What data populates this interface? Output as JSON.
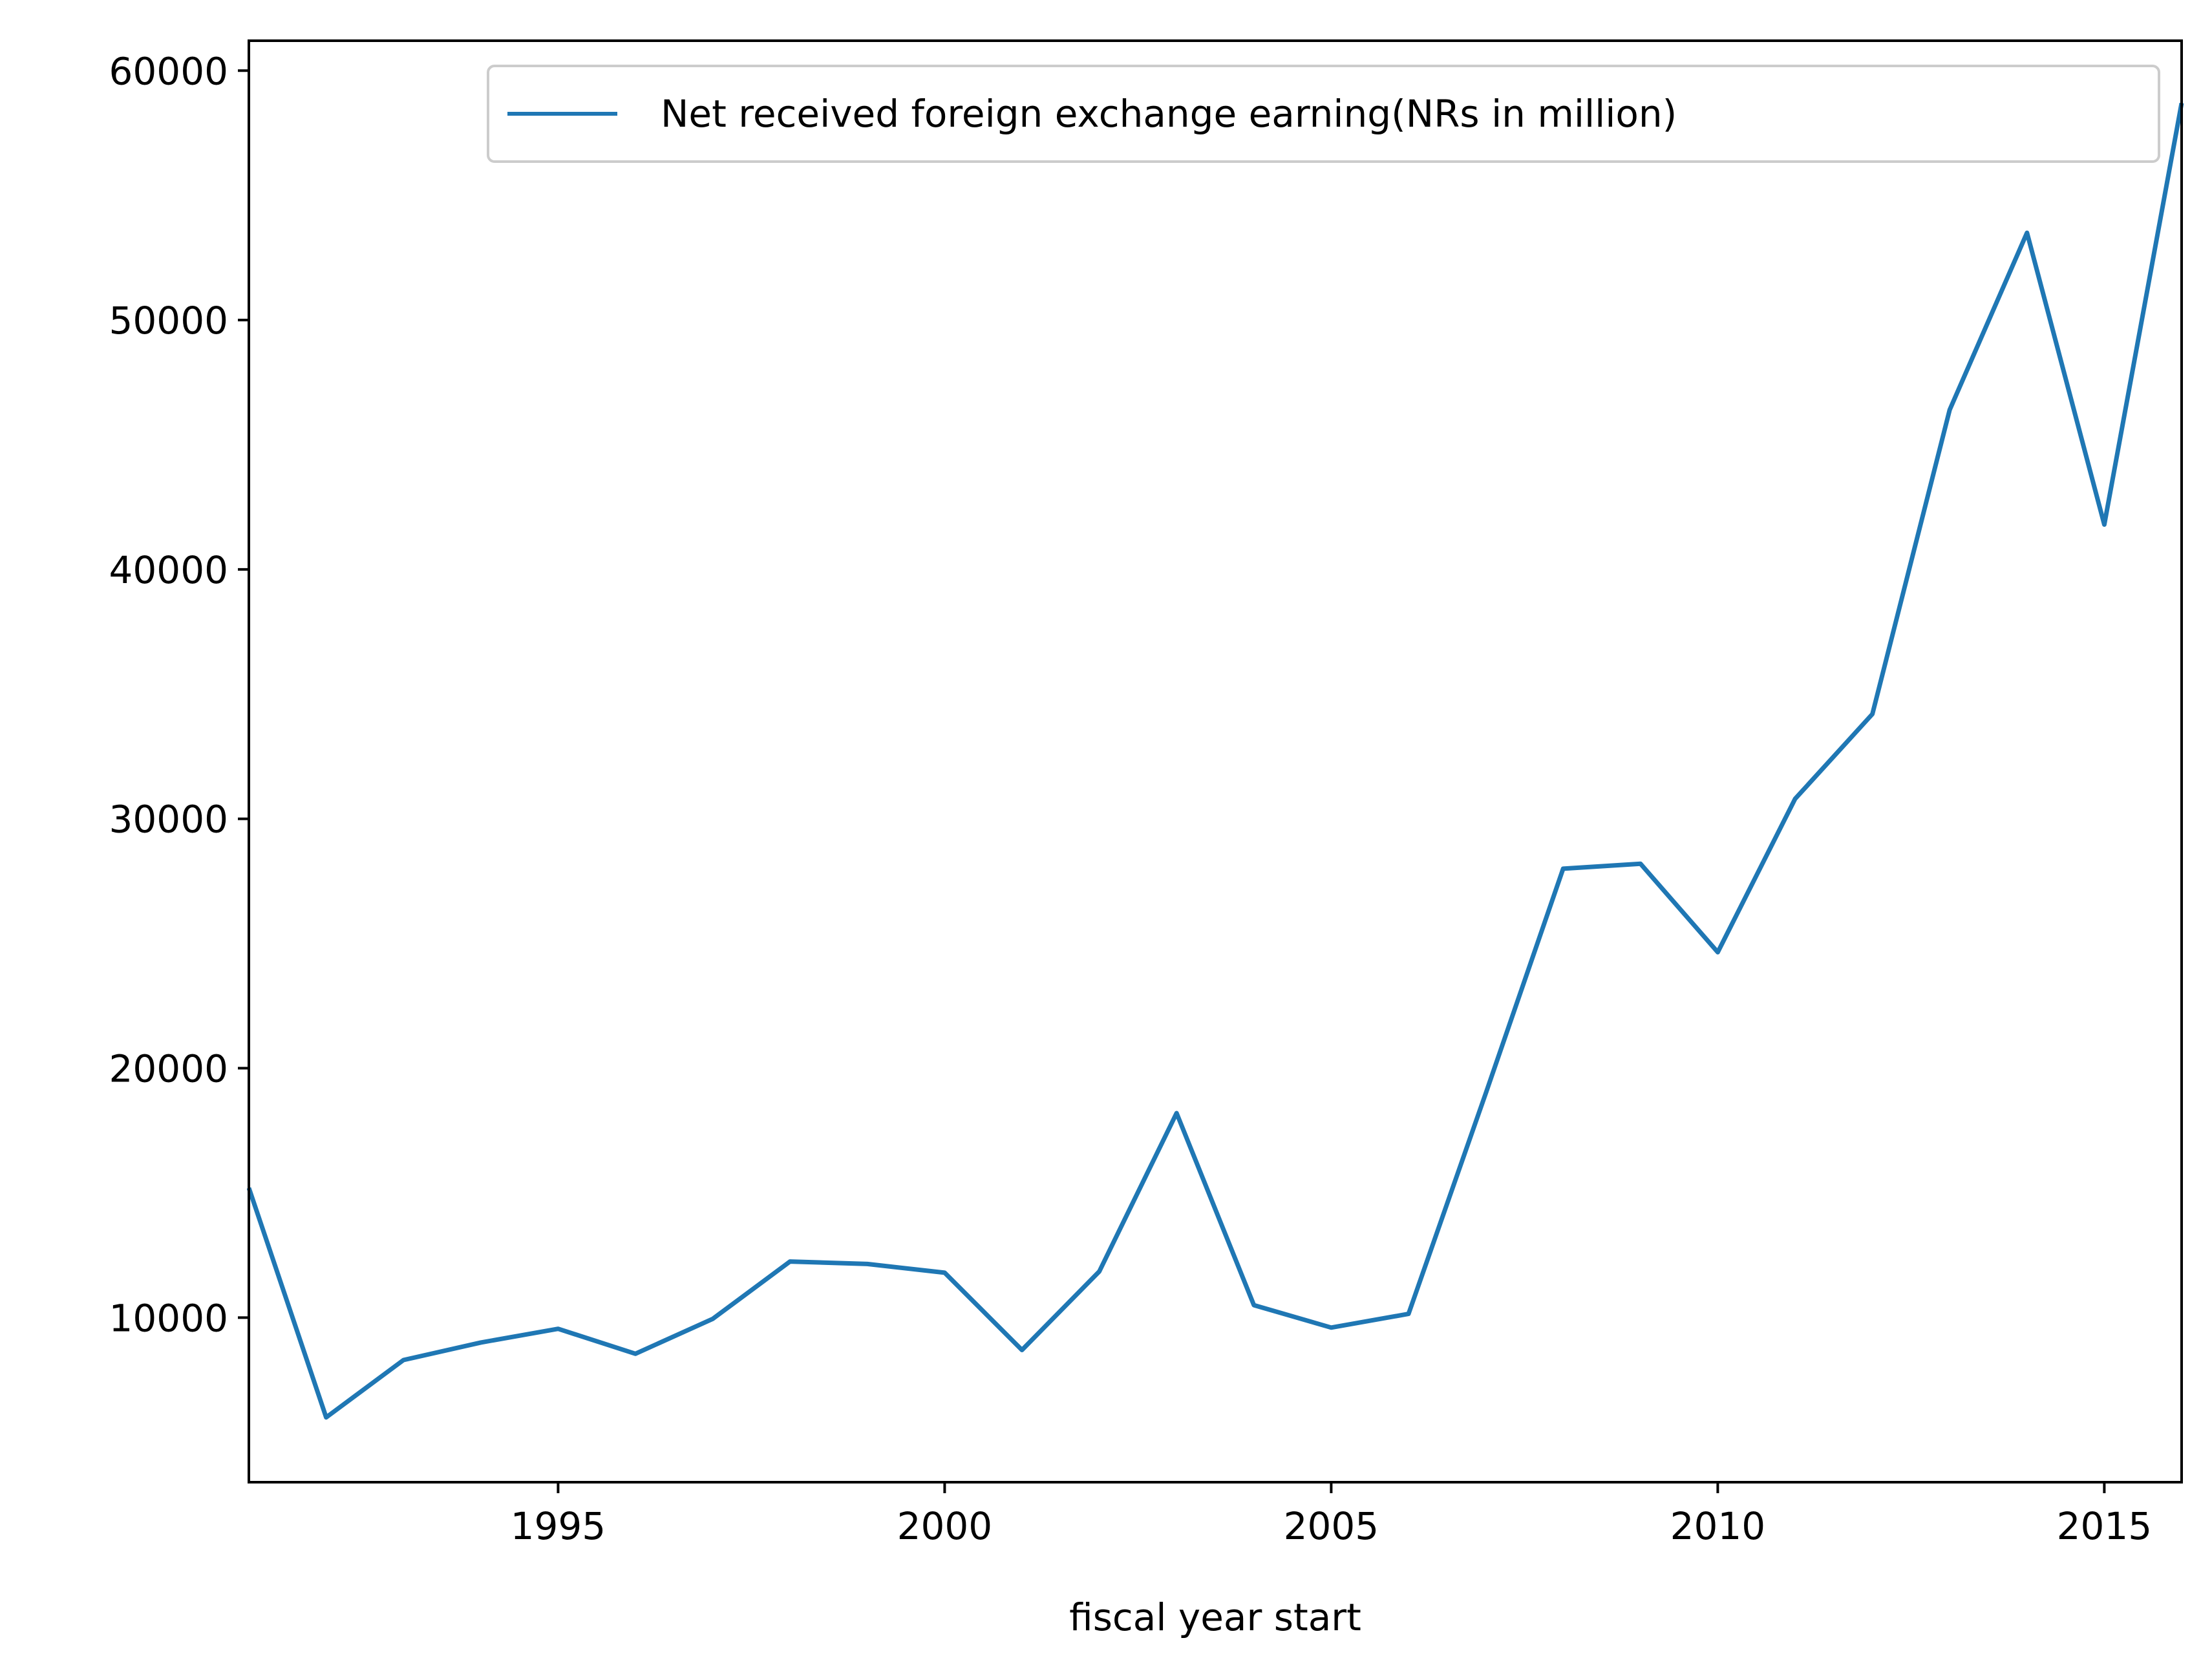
{
  "chart_data": {
    "type": "line",
    "title": "",
    "xlabel": "fiscal  year start",
    "ylabel": "",
    "xlim": [
      1991,
      2016
    ],
    "ylim": [
      3400,
      61200
    ],
    "xticks": [
      1995,
      2000,
      2005,
      2010,
      2015
    ],
    "yticks": [
      10000,
      20000,
      30000,
      40000,
      50000,
      60000
    ],
    "grid": false,
    "legend_position": "top-right",
    "series": [
      {
        "name": "Net received foreign exchange earning(NRs in million)",
        "color": "#1f77b4",
        "x": [
          1991,
          1992,
          1993,
          1994,
          1995,
          1996,
          1997,
          1998,
          1999,
          2000,
          2001,
          2002,
          2003,
          2004,
          2005,
          2006,
          2007,
          2008,
          2009,
          2010,
          2011,
          2012,
          2013,
          2014,
          2015,
          2016
        ],
        "values": [
          15200,
          6000,
          8300,
          9000,
          9550,
          8550,
          9950,
          12250,
          12150,
          11800,
          8700,
          11850,
          18200,
          10500,
          9600,
          10150,
          19000,
          28000,
          28200,
          24650,
          30800,
          34200,
          46400,
          53500,
          41800,
          58700
        ]
      }
    ]
  }
}
